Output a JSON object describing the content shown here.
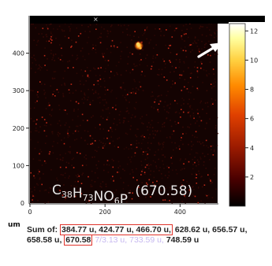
{
  "chart_data": {
    "type": "heatmap",
    "x_ticks": [
      0,
      200,
      400
    ],
    "y_ticks": [
      100,
      200,
      300,
      400
    ],
    "origin_label": "0",
    "x_unit": "um",
    "xlim": [
      0,
      500
    ],
    "ylim": [
      0,
      500
    ],
    "colorbar": {
      "ticks": [
        2,
        4,
        6,
        8,
        10,
        12
      ],
      "range": [
        0,
        12.5
      ],
      "colormap": [
        "#000000",
        "#4a0000",
        "#9a1a00",
        "#e04000",
        "#ff8a00",
        "#ffd040",
        "#ffffa0",
        "#ffffff"
      ]
    },
    "annotation": {
      "formula_base": "C",
      "formula_parts": [
        {
          "t": "C",
          "kind": "normal"
        },
        {
          "t": "38",
          "kind": "sub"
        },
        {
          "t": "H",
          "kind": "normal"
        },
        {
          "t": "73",
          "kind": "sub"
        },
        {
          "t": "NO",
          "kind": "normal"
        },
        {
          "t": "6",
          "kind": "sub"
        },
        {
          "t": "P",
          "kind": "normal"
        },
        {
          "t": "-",
          "kind": "sup"
        }
      ],
      "mass": "(670.58)",
      "arrow_target": [
        288,
        415
      ]
    },
    "hotspot": {
      "x": 290,
      "y": 420,
      "intensity": 12
    }
  },
  "caption": {
    "prefix": "Sum of: ",
    "boxed_1": "384.77 u, 424.77 u, 466.70 u,",
    "middle": " 628.62 u, 656.57 u, 658.58 u, ",
    "boxed_2": "670.58",
    "faint_tail": " 7/3.13 u, 733.59 u,",
    "end": " 748.59 u"
  },
  "colors": {
    "noise_dim": "#3a0a06",
    "noise_bright": "#c22a18",
    "box": "#e0332b"
  }
}
